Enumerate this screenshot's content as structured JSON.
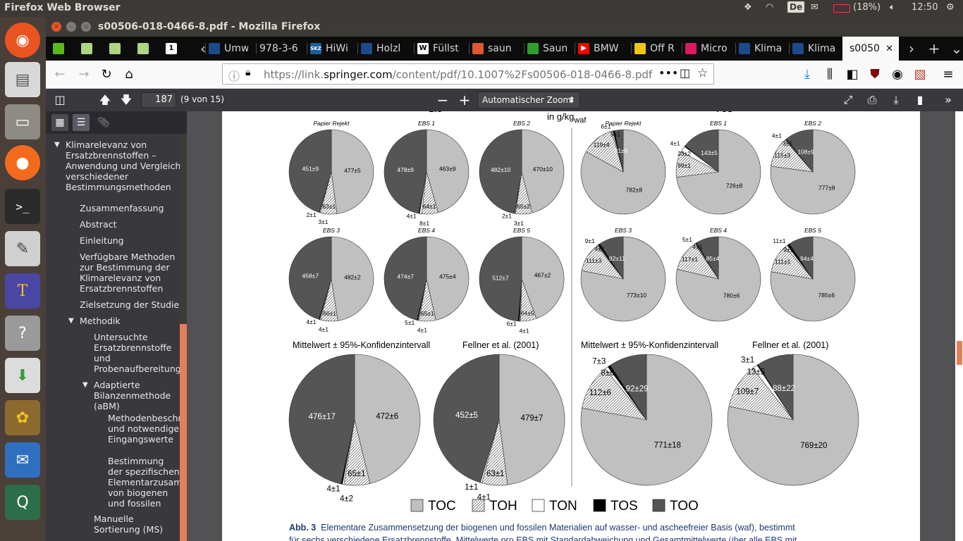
{
  "top_panel": {
    "app_title": "Firefox Web Browser",
    "keyboard": "De",
    "battery": "(18%)",
    "clock": "12:50"
  },
  "launcher": {
    "items": [
      "ubuntu-logo-icon",
      "files-icon",
      "file-manager-icon",
      "firefox-icon",
      "terminal-icon",
      "drawing-icon",
      "texmaker-icon",
      "unknown-app-icon",
      "software-installer-icon",
      "gimp-icon",
      "thunderbird-icon",
      "qgis-icon"
    ]
  },
  "window": {
    "title": "s00506-018-0466-8.pdf - Mozilla Firefox"
  },
  "tabs": [
    {
      "label": "",
      "icon": "green-app-icon",
      "color": "#5cb81e"
    },
    {
      "label": "",
      "icon": "clipboard-icon",
      "color": "#aed581"
    },
    {
      "label": "",
      "icon": "clipboard-icon",
      "color": "#aed581"
    },
    {
      "label": "",
      "icon": "clipboard-icon",
      "color": "#aed581"
    },
    {
      "label": "",
      "icon": "one-icon",
      "color": "#ffffff"
    },
    {
      "label": "Umw",
      "icon": "springer-icon",
      "color": "#1c4a8a"
    },
    {
      "label": "978-3-6",
      "icon": "",
      "color": ""
    },
    {
      "label": "HiWi",
      "icon": "skz-icon",
      "color": "#1b5e9c"
    },
    {
      "label": "Holzl",
      "icon": "springer-icon",
      "color": "#1c4a8a"
    },
    {
      "label": "Füllst",
      "icon": "wikipedia-icon",
      "color": "#ffffff"
    },
    {
      "label": "saun",
      "icon": "duckduckgo-icon",
      "color": "#de5833"
    },
    {
      "label": "Saun",
      "icon": "green-leaf-icon",
      "color": "#2e9e2e"
    },
    {
      "label": "BMW",
      "icon": "youtube-icon",
      "color": "#ff0000"
    },
    {
      "label": "Off R",
      "icon": "offroad-icon",
      "color": "#f0c419"
    },
    {
      "label": "Micro",
      "icon": "micro-icon",
      "color": "#d81b60"
    },
    {
      "label": "Klima",
      "icon": "springer-icon",
      "color": "#1c4a8a"
    },
    {
      "label": "Klima",
      "icon": "springer-icon",
      "color": "#1c4a8a"
    },
    {
      "label": "s0050",
      "icon": "",
      "color": "",
      "selected": true
    }
  ],
  "nav": {
    "url_prefix": "https://link.",
    "url_domain": "springer.com",
    "url_path": "/content/pdf/10.1007%2Fs00506-018-0466-8.pdf"
  },
  "pdf_toolbar": {
    "page_number": "187",
    "page_count": "(9 von 15)",
    "zoom": "Automatischer Zoom"
  },
  "outline": [
    {
      "label": "Klimarelevanz von Ersatzbrennstoffen – Anwendung und Vergleich verschiedener Bestimmungsmethoden",
      "level": 0,
      "expanded": true
    },
    {
      "label": "Zusammenfassung",
      "level": 1
    },
    {
      "label": "Abstract",
      "level": 1
    },
    {
      "label": "Einleitung",
      "level": 1
    },
    {
      "label": "Verfügbare Methoden zur Bestimmung der Klimarelevanz von Ersatzbrennstoffen",
      "level": 1
    },
    {
      "label": "Zielsetzung der Studie",
      "level": 1
    },
    {
      "label": "Methodik",
      "level": 1,
      "expanded": true
    },
    {
      "label": "Untersuchte Ersatzbrennstoffe und Probenaufbereitung",
      "level": 2
    },
    {
      "label": "Adaptierte Bilanzenmethode (aBM)",
      "level": 2,
      "expanded": true
    },
    {
      "label": "Methodenbeschreibung und notwendige Eingangswerte",
      "level": 3
    },
    {
      "label": "Bestimmung der spezifischen Elementarzusammensetzung von biogenen und fossilen Materialien",
      "level": 3
    },
    {
      "label": "Manuelle Sortierung (MS)",
      "level": 2
    }
  ],
  "figure": {
    "header_left": "TOC",
    "header_left_sub": "BIO",
    "header_mid": "in g/kg",
    "header_mid_sub": "waf",
    "header_right": "TOC",
    "header_right_sub": "FOS",
    "subtitle_mean": "Mittelwert ± 95%-Konfidenzintervall",
    "subtitle_fellner": "Fellner et al. (2001)",
    "caption_label": "Abb. 3",
    "caption_text": "Elementare Zusammensetzung der biogenen und fossilen Materialien auf wasser- und ascheefreier Basis (waf), bestimmt",
    "caption_line2": "für sechs verschiedene Ersatzbrennstoffe. Mittelwerte pro EBS mit Standardabweichung und Gesamtmittelwerte über alle EBS mit",
    "legend": [
      {
        "name": "TOC",
        "color": "#c0c0c0"
      },
      {
        "name": "TOH",
        "color": "hatch"
      },
      {
        "name": "TON",
        "color": "#ffffff"
      },
      {
        "name": "TOS",
        "color": "#000000"
      },
      {
        "name": "TOO",
        "color": "#555555"
      }
    ]
  },
  "chart_data": [
    {
      "type": "pie",
      "title": "Papier Rejekt",
      "group": "BIO",
      "slices": [
        {
          "name": "TOC",
          "label": "477±5"
        },
        {
          "name": "TOH",
          "label": "63±1"
        },
        {
          "name": "TON",
          "label": "3±1"
        },
        {
          "name": "TOS",
          "label": "2±1"
        },
        {
          "name": "TOO",
          "label": "451±9"
        }
      ]
    },
    {
      "type": "pie",
      "title": "EBS 1",
      "group": "BIO",
      "slices": [
        {
          "name": "TOC",
          "label": "463±9"
        },
        {
          "name": "TOH",
          "label": "64±1"
        },
        {
          "name": "TON",
          "label": "8±1"
        },
        {
          "name": "TOS",
          "label": "4±1"
        },
        {
          "name": "TOO",
          "label": "478±9"
        }
      ]
    },
    {
      "type": "pie",
      "title": "EBS 2",
      "group": "BIO",
      "slices": [
        {
          "name": "TOC",
          "label": "470±10"
        },
        {
          "name": "TOH",
          "label": "65±2"
        },
        {
          "name": "TON",
          "label": "3±1"
        },
        {
          "name": "TOS",
          "label": "2±1"
        },
        {
          "name": "TOO",
          "label": "482±10"
        }
      ]
    },
    {
      "type": "pie",
      "title": "EBS 3",
      "group": "BIO",
      "slices": [
        {
          "name": "TOC",
          "label": "482±2"
        },
        {
          "name": "TOH",
          "label": "66±1"
        },
        {
          "name": "TON",
          "label": "4±1"
        },
        {
          "name": "TOS",
          "label": "4±1"
        },
        {
          "name": "TOO",
          "label": "458±7"
        }
      ]
    },
    {
      "type": "pie",
      "title": "EBS 4",
      "group": "BIO",
      "slices": [
        {
          "name": "TOC",
          "label": "475±4"
        },
        {
          "name": "TOH",
          "label": "65±1"
        },
        {
          "name": "TON",
          "label": "4±1"
        },
        {
          "name": "TOS",
          "label": "5±1"
        },
        {
          "name": "TOO",
          "label": "474±7"
        }
      ]
    },
    {
      "type": "pie",
      "title": "EBS 5",
      "group": "BIO",
      "slices": [
        {
          "name": "TOC",
          "label": "467±2"
        },
        {
          "name": "TOH",
          "label": "64±5"
        },
        {
          "name": "TON",
          "label": "4±1"
        },
        {
          "name": "TOS",
          "label": "6±1"
        },
        {
          "name": "TOO",
          "label": "512±7"
        }
      ]
    },
    {
      "type": "pie",
      "title": "Papier Rejekt",
      "group": "FOS",
      "slices": [
        {
          "name": "TOC",
          "label": "782±8"
        },
        {
          "name": "TOH",
          "label": "119±4"
        },
        {
          "name": "TON",
          "label": "5±1"
        },
        {
          "name": "TOS",
          "label": "6±1"
        },
        {
          "name": "TOO",
          "label": "31±6"
        }
      ]
    },
    {
      "type": "pie",
      "title": "EBS 1",
      "group": "FOS",
      "slices": [
        {
          "name": "TOC",
          "label": "726±8"
        },
        {
          "name": "TOH",
          "label": "99±1"
        },
        {
          "name": "TON",
          "label": "23±2"
        },
        {
          "name": "TOS",
          "label": "4±1"
        },
        {
          "name": "TOO",
          "label": "143±5"
        }
      ]
    },
    {
      "type": "pie",
      "title": "EBS 2",
      "group": "FOS",
      "slices": [
        {
          "name": "TOC",
          "label": "777±8"
        },
        {
          "name": "TOH",
          "label": "115±3"
        },
        {
          "name": "TON",
          "label": "3±1"
        },
        {
          "name": "TOS",
          "label": "4±1"
        },
        {
          "name": "TOO",
          "label": "108±9"
        }
      ]
    },
    {
      "type": "pie",
      "title": "EBS 3",
      "group": "FOS",
      "slices": [
        {
          "name": "TOC",
          "label": "773±10"
        },
        {
          "name": "TOH",
          "label": "111±3"
        },
        {
          "name": "TON",
          "label": "4±1"
        },
        {
          "name": "TOS",
          "label": "9±1"
        },
        {
          "name": "TOO",
          "label": "92±11"
        }
      ]
    },
    {
      "type": "pie",
      "title": "EBS 4",
      "group": "FOS",
      "slices": [
        {
          "name": "TOC",
          "label": "780±6"
        },
        {
          "name": "TOH",
          "label": "117±1"
        },
        {
          "name": "TON",
          "label": "4±1"
        },
        {
          "name": "TOS",
          "label": "5±1"
        },
        {
          "name": "TOO",
          "label": "85±4"
        }
      ]
    },
    {
      "type": "pie",
      "title": "EBS 5",
      "group": "FOS",
      "slices": [
        {
          "name": "TOC",
          "label": "785±6"
        },
        {
          "name": "TOH",
          "label": "111±1"
        },
        {
          "name": "TON",
          "label": "9±1"
        },
        {
          "name": "TOS",
          "label": "11±1"
        },
        {
          "name": "TOO",
          "label": "94±4"
        }
      ]
    },
    {
      "type": "pie",
      "title": "Mittelwert ± 95%-Konfidenzintervall",
      "group": "BIO",
      "slices": [
        {
          "name": "TOC",
          "label": "472±6"
        },
        {
          "name": "TOH",
          "label": "65±1"
        },
        {
          "name": "TON",
          "label": "4±2"
        },
        {
          "name": "TOS",
          "label": "4±1"
        },
        {
          "name": "TOO",
          "label": "476±17"
        }
      ]
    },
    {
      "type": "pie",
      "title": "Fellner et al. (2001)",
      "group": "BIO",
      "slices": [
        {
          "name": "TOC",
          "label": "479±7"
        },
        {
          "name": "TOH",
          "label": "63±1"
        },
        {
          "name": "TON",
          "label": "4±1"
        },
        {
          "name": "TOS",
          "label": "1±1"
        },
        {
          "name": "TOO",
          "label": "452±5"
        }
      ]
    },
    {
      "type": "pie",
      "title": "Mittelwert ± 95%-Konfidenzintervall",
      "group": "FOS",
      "slices": [
        {
          "name": "TOC",
          "label": "771±18"
        },
        {
          "name": "TOH",
          "label": "112±6"
        },
        {
          "name": "TON",
          "label": "8±6"
        },
        {
          "name": "TOS",
          "label": "7±3"
        },
        {
          "name": "TOO",
          "label": "92±29"
        }
      ]
    },
    {
      "type": "pie",
      "title": "Fellner et al. (2001)",
      "group": "FOS",
      "slices": [
        {
          "name": "TOC",
          "label": "769±20"
        },
        {
          "name": "TOH",
          "label": "109±7"
        },
        {
          "name": "TON",
          "label": "13±5"
        },
        {
          "name": "TOS",
          "label": "3±1"
        },
        {
          "name": "TOO",
          "label": "88±22"
        }
      ]
    }
  ]
}
